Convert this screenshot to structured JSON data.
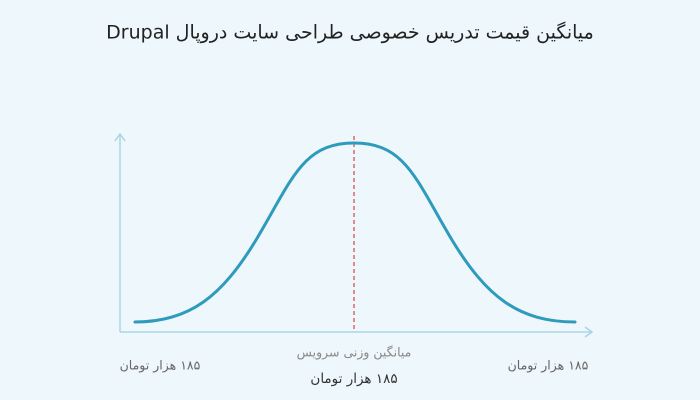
{
  "title": "میانگین قیمت تدریس خصوصی طراحی سایت دروپال Drupal",
  "labels": {
    "left": "۱۸۵ هزار تومان",
    "right": "۱۸۵ هزار تومان",
    "center_caption": "میانگین وزنی سرویس",
    "center_value": "۱۸۵ هزار تومان"
  }
}
